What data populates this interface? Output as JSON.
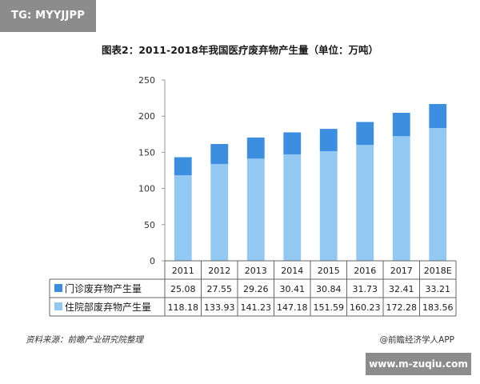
{
  "badge": "TG: MYYJJPP",
  "footer": {
    "source": "资料来源：前瞻产业研究院整理",
    "brand": "@前瞻经济学人APP"
  },
  "watermark": "www.m-zuqiu.com",
  "colors": {
    "outpatient": "#3b8ee0",
    "inpatient": "#93c8f2",
    "grid": "#d9d9d9",
    "axis": "#999999"
  },
  "chart_data": {
    "type": "bar",
    "stacked": true,
    "title": "图表2：2011-2018年我国医疗废弃物产生量（单位：万吨）",
    "categories": [
      "2011",
      "2012",
      "2013",
      "2014",
      "2015",
      "2016",
      "2017",
      "2018E"
    ],
    "series": [
      {
        "name": "住院部废弃物产生量",
        "values": [
          118.18,
          133.93,
          141.23,
          147.18,
          151.59,
          160.23,
          172.28,
          183.56
        ]
      },
      {
        "name": "门诊废弃物产生量",
        "values": [
          25.08,
          27.55,
          29.26,
          30.41,
          30.84,
          31.73,
          32.41,
          33.21
        ]
      }
    ],
    "ylim": [
      0,
      250
    ],
    "yticks": [
      0,
      50,
      100,
      150,
      200,
      250
    ],
    "grid": false,
    "legend": "table-left",
    "data_table": true
  }
}
